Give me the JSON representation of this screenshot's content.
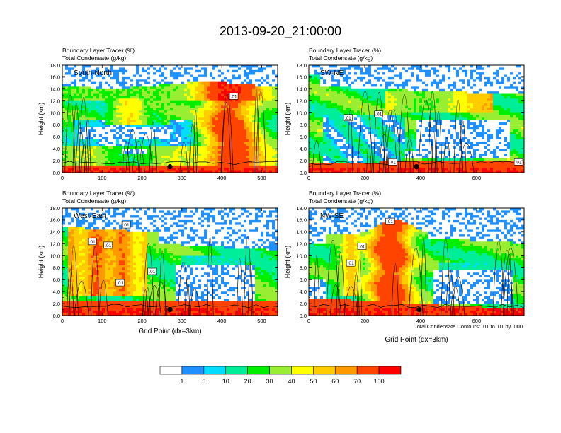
{
  "title": "2013-09-20_21:00:00",
  "footnote": "Total Condensate Contours: .01 to .01 by .000",
  "chart_data": [
    {
      "type": "heatmap",
      "panel_label": "South-North",
      "subtitle_1": "Boundary Layer Tracer   (%)",
      "subtitle_2": "Total Condensate   (g/kg)",
      "ylabel": "Height (km)",
      "xlabel": "",
      "xlim": [
        0,
        540
      ],
      "ylim": [
        0,
        18
      ],
      "xticks": [
        0,
        100,
        200,
        300,
        400,
        500
      ],
      "yticks": [
        "0.0",
        "2.0",
        "4.0",
        "6.0",
        "8.0",
        "10.0",
        "12.0",
        "14.0",
        "16.0",
        "18.0"
      ],
      "marker_x": 270,
      "contour_labels": [
        {
          "x": 430,
          "y": 12.8,
          "text": ".01"
        }
      ]
    },
    {
      "type": "heatmap",
      "panel_label": "SW-NE",
      "subtitle_1": "Boundary Layer Tracer   (%)",
      "subtitle_2": "Total Condensate   (g/kg)",
      "ylabel": "Height (km)",
      "xlabel": "",
      "xlim": [
        0,
        770
      ],
      "ylim": [
        0,
        18
      ],
      "xticks": [
        0,
        200,
        400,
        600
      ],
      "yticks": [
        "0.0",
        "2.0",
        "4.0",
        "6.0",
        "8.0",
        "10.0",
        "12.0",
        "14.0",
        "16.0",
        "18.0"
      ],
      "marker_x": 385,
      "contour_labels": [
        {
          "x": 140,
          "y": 9.2,
          "text": ".01"
        },
        {
          "x": 250,
          "y": 9.8,
          "text": ".01"
        },
        {
          "x": 300,
          "y": 1.8,
          "text": ".01"
        },
        {
          "x": 750,
          "y": 1.8,
          "text": ".01"
        }
      ]
    },
    {
      "type": "heatmap",
      "panel_label": "West-East",
      "subtitle_1": "Boundary Layer Tracer   (%)",
      "subtitle_2": "Total Condensate   (g/kg)",
      "ylabel": "Height (km)",
      "xlabel": "Grid Point (dx=3km)",
      "xlim": [
        0,
        540
      ],
      "ylim": [
        0,
        18
      ],
      "xticks": [
        0,
        100,
        200,
        300,
        400,
        500
      ],
      "yticks": [
        "0.0",
        "2.0",
        "4.0",
        "6.0",
        "8.0",
        "10.0",
        "12.0",
        "14.0",
        "16.0",
        "18.0"
      ],
      "marker_x": 270,
      "contour_labels": [
        {
          "x": 160,
          "y": 15.2,
          "text": ".01"
        },
        {
          "x": 75,
          "y": 12.4,
          "text": ".01"
        },
        {
          "x": 115,
          "y": 11.8,
          "text": ".01"
        },
        {
          "x": 225,
          "y": 7.4,
          "text": ".01"
        },
        {
          "x": 145,
          "y": 5.5,
          "text": ".01"
        }
      ]
    },
    {
      "type": "heatmap",
      "panel_label": "NW-SE",
      "subtitle_1": "Boundary Layer Tracer   (%)",
      "subtitle_2": "Total Condensate   (g/kg)",
      "ylabel": "Height (km)",
      "xlabel": "Grid Point (dx=3km)",
      "xlim": [
        0,
        770
      ],
      "ylim": [
        0,
        18
      ],
      "xticks": [
        0,
        200,
        400,
        600
      ],
      "yticks": [
        "0.0",
        "2.0",
        "4.0",
        "6.0",
        "8.0",
        "10.0",
        "12.0",
        "14.0",
        "16.0",
        "18.0"
      ],
      "marker_x": 395,
      "contour_labels": [
        {
          "x": 290,
          "y": 15.8,
          "text": ".01"
        },
        {
          "x": 190,
          "y": 11.6,
          "text": ".01"
        },
        {
          "x": 150,
          "y": 8.8,
          "text": ".01"
        }
      ]
    }
  ],
  "colorbar": {
    "colors": [
      "#ffffff",
      "#1e90ff",
      "#00ddff",
      "#00ee99",
      "#00ee00",
      "#99ee33",
      "#ffff00",
      "#ffcc00",
      "#ff9900",
      "#ff4400",
      "#ff0000"
    ],
    "labels": [
      "1",
      "5",
      "10",
      "20",
      "30",
      "40",
      "50",
      "60",
      "70",
      "100"
    ]
  }
}
